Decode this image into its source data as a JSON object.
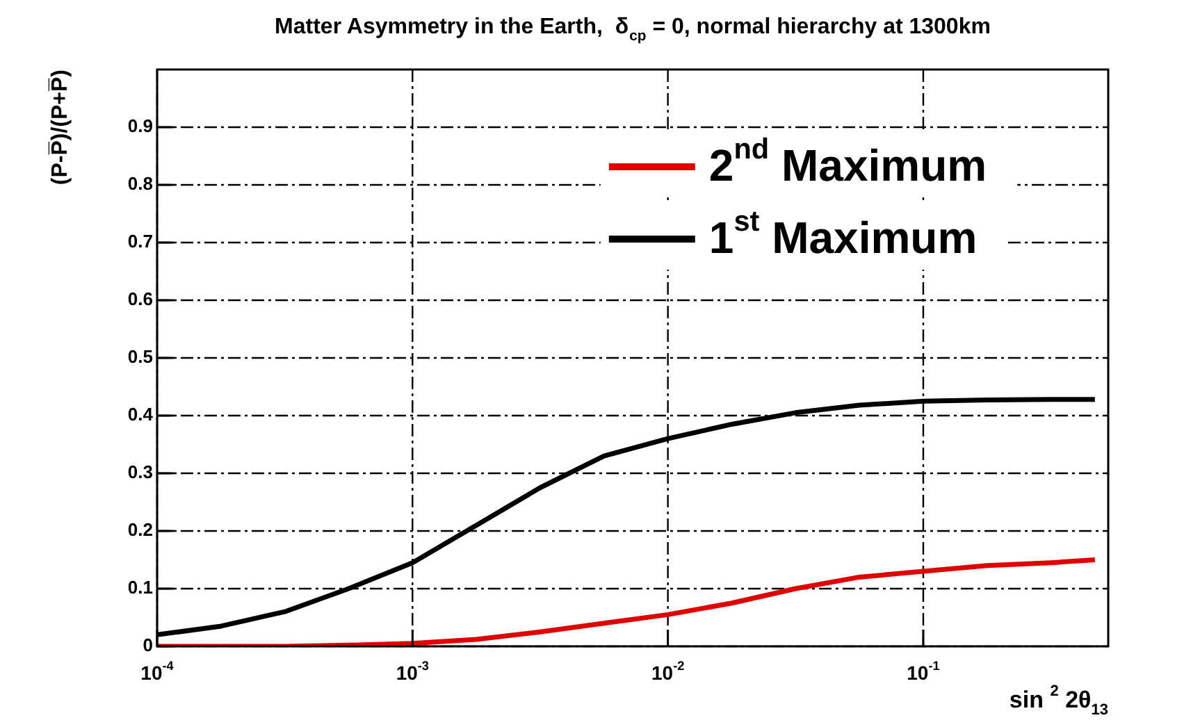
{
  "chart_data": {
    "type": "line",
    "title": "Matter Asymmetry in the Earth,  δ$_{cp}$ = 0, normal hierarchy at 1300km",
    "xlabel": "sin $^{2}$ 2θ$_{13}$",
    "ylabel": "(P-P̅)/(P+P̅)",
    "log": "x",
    "grid": true,
    "legend": "top right",
    "marker": "none",
    "line_style": "solid",
    "xlim": [
      0.0001,
      0.53
    ],
    "xticks": [
      {
        "value": 0.0001,
        "label": "10$^{-4}$"
      },
      {
        "value": 0.001,
        "label": "10$^{-3}$"
      },
      {
        "value": 0.01,
        "label": "10$^{-2}$"
      },
      {
        "value": 0.1,
        "label": "10$^{-1}$"
      }
    ],
    "ylim": [
      0,
      1
    ],
    "yticks": [
      0,
      0.1,
      0.2,
      0.3,
      0.4,
      0.5,
      0.6,
      0.7,
      0.8,
      0.9
    ],
    "x": [
      0.0001,
      0.000178,
      0.000316,
      0.000562,
      0.001,
      0.00178,
      0.00316,
      0.00562,
      0.01,
      0.0178,
      0.0316,
      0.0562,
      0.1,
      0.178,
      0.316,
      0.47
    ],
    "series": [
      {
        "name": "2$^{nd}$ Maximum",
        "color": "#e00000",
        "values": [
          0,
          0,
          0,
          0.002,
          0.005,
          0.012,
          0.025,
          0.04,
          0.055,
          0.075,
          0.1,
          0.12,
          0.13,
          0.14,
          0.145,
          0.15
        ]
      },
      {
        "name": "1$^{st}$ Maximum",
        "color": "#000000",
        "values": [
          0.02,
          0.035,
          0.06,
          0.1,
          0.145,
          0.21,
          0.275,
          0.33,
          0.36,
          0.385,
          0.405,
          0.418,
          0.425,
          0.427,
          0.428,
          0.428
        ]
      }
    ]
  }
}
